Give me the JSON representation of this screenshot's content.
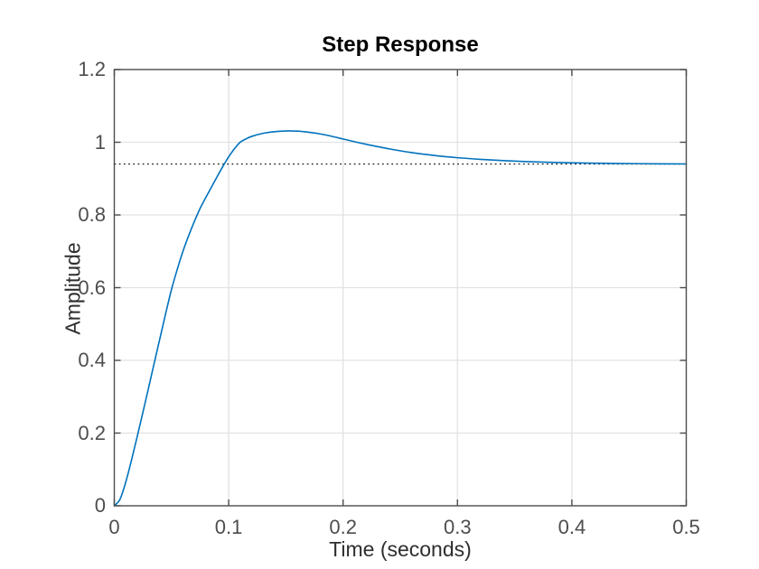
{
  "title": "Step Response",
  "axes": {
    "x": {
      "label": "Time (seconds)",
      "ticks": [
        "0",
        "0.1",
        "0.2",
        "0.3",
        "0.4",
        "0.5"
      ],
      "tick_values": [
        0,
        0.1,
        0.2,
        0.3,
        0.4,
        0.5
      ],
      "grid_values": [
        0.1,
        0.2,
        0.3,
        0.4
      ]
    },
    "y": {
      "label": "Amplitude",
      "ticks": [
        "0",
        "0.2",
        "0.4",
        "0.6",
        "0.8",
        "1",
        "1.2"
      ],
      "tick_values": [
        0,
        0.2,
        0.4,
        0.6,
        0.8,
        1,
        1.2
      ],
      "grid_values": [
        0.2,
        0.4,
        0.6,
        0.8,
        1.0
      ]
    }
  },
  "chart_data": {
    "type": "line",
    "title": "Step Response",
    "xlabel": "Time (seconds)",
    "ylabel": "Amplitude",
    "xlim": [
      0,
      0.5
    ],
    "ylim": [
      0,
      1.2
    ],
    "grid": true,
    "legend": "none",
    "series": [
      {
        "name": "step-response-curve",
        "color": "#0072BD",
        "style": "solid",
        "x": [
          0,
          0.005,
          0.01,
          0.015,
          0.02,
          0.025,
          0.03,
          0.035,
          0.04,
          0.045,
          0.05,
          0.055,
          0.06,
          0.065,
          0.07,
          0.075,
          0.08,
          0.085,
          0.09,
          0.095,
          0.1,
          0.105,
          0.11,
          0.115,
          0.12,
          0.13,
          0.14,
          0.15,
          0.16,
          0.17,
          0.18,
          0.19,
          0.2,
          0.21,
          0.22,
          0.24,
          0.26,
          0.28,
          0.3,
          0.32,
          0.34,
          0.36,
          0.38,
          0.4,
          0.42,
          0.44,
          0.46,
          0.48,
          0.5
        ],
        "y": [
          0,
          0.018,
          0.065,
          0.125,
          0.19,
          0.257,
          0.325,
          0.394,
          0.462,
          0.53,
          0.595,
          0.65,
          0.7,
          0.743,
          0.782,
          0.818,
          0.848,
          0.877,
          0.906,
          0.934,
          0.96,
          0.982,
          1.0,
          1.009,
          1.016,
          1.0245,
          1.029,
          1.031,
          1.0305,
          1.0275,
          1.023,
          1.0165,
          1.009,
          1.0015,
          0.9945,
          0.982,
          0.9715,
          0.9635,
          0.9575,
          0.953,
          0.9495,
          0.9468,
          0.9448,
          0.9434,
          0.9423,
          0.9415,
          0.941,
          0.9406,
          0.9404
        ]
      },
      {
        "name": "steady-state-line",
        "color": "#1a1a1a",
        "style": "dotted",
        "y_value": 0.94
      }
    ],
    "peak": {
      "t": 0.15,
      "y": 1.031
    },
    "steady_state": 0.94
  },
  "colors": {
    "background": "#ffffff",
    "curve": "#0072BD",
    "grid": "#e2e2e2",
    "axis_box": "#4c4c4c",
    "tick_label": "#4d4d4d",
    "axis_label": "#2e2e2e",
    "title": "#000000",
    "dotted_line": "#1a1a1a"
  }
}
